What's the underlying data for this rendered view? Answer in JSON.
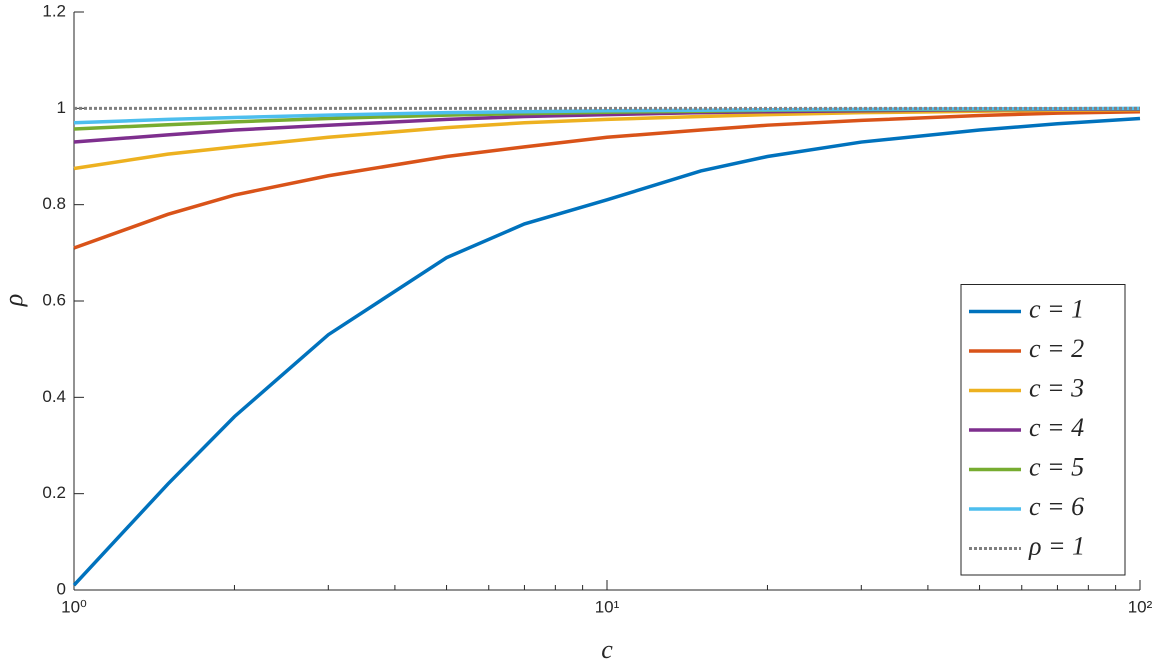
{
  "chart_data": {
    "type": "line",
    "xlabel": "c",
    "ylabel": "ρ",
    "x": [
      1,
      1.5,
      2,
      3,
      5,
      7,
      10,
      15,
      20,
      30,
      50,
      70,
      100
    ],
    "xscale": "log",
    "xlim": [
      1,
      100
    ],
    "xticks": [
      {
        "value": 1,
        "label": "10⁰"
      },
      {
        "value": 10,
        "label": "10¹"
      },
      {
        "value": 100,
        "label": "10²"
      }
    ],
    "xminorticks": [
      2,
      3,
      4,
      5,
      6,
      7,
      8,
      9,
      20,
      30,
      40,
      50,
      60,
      70,
      80,
      90
    ],
    "ylim": [
      0,
      1.2
    ],
    "yticks": [
      0,
      0.2,
      0.4,
      0.6,
      0.8,
      1,
      1.2
    ],
    "legend": "lower right",
    "series": [
      {
        "name": "c = 1",
        "color": "#0072BD",
        "values": [
          0.01,
          0.22,
          0.36,
          0.53,
          0.69,
          0.76,
          0.81,
          0.87,
          0.9,
          0.93,
          0.955,
          0.968,
          0.979
        ]
      },
      {
        "name": "c = 2",
        "color": "#D95319",
        "values": [
          0.71,
          0.78,
          0.82,
          0.86,
          0.9,
          0.92,
          0.94,
          0.955,
          0.965,
          0.975,
          0.985,
          0.99,
          0.993
        ]
      },
      {
        "name": "c = 3",
        "color": "#EDB120",
        "values": [
          0.875,
          0.905,
          0.92,
          0.94,
          0.96,
          0.97,
          0.977,
          0.983,
          0.987,
          0.991,
          0.994,
          0.996,
          0.997
        ]
      },
      {
        "name": "c = 4",
        "color": "#7E2F8E",
        "values": [
          0.93,
          0.945,
          0.955,
          0.965,
          0.977,
          0.983,
          0.987,
          0.991,
          0.993,
          0.995,
          0.997,
          0.998,
          0.998
        ]
      },
      {
        "name": "c = 5",
        "color": "#77AC30",
        "values": [
          0.957,
          0.966,
          0.972,
          0.979,
          0.986,
          0.989,
          0.992,
          0.994,
          0.996,
          0.997,
          0.998,
          0.999,
          0.999
        ]
      },
      {
        "name": "c = 6",
        "color": "#4DBEEE",
        "values": [
          0.97,
          0.977,
          0.981,
          0.986,
          0.991,
          0.993,
          0.995,
          0.996,
          0.997,
          0.998,
          0.999,
          0.999,
          1.0
        ]
      },
      {
        "name": "ρ = 1",
        "color": "#808080",
        "linestyle": "dotted",
        "values": [
          1,
          1,
          1,
          1,
          1,
          1,
          1,
          1,
          1,
          1,
          1,
          1,
          1
        ]
      }
    ]
  }
}
